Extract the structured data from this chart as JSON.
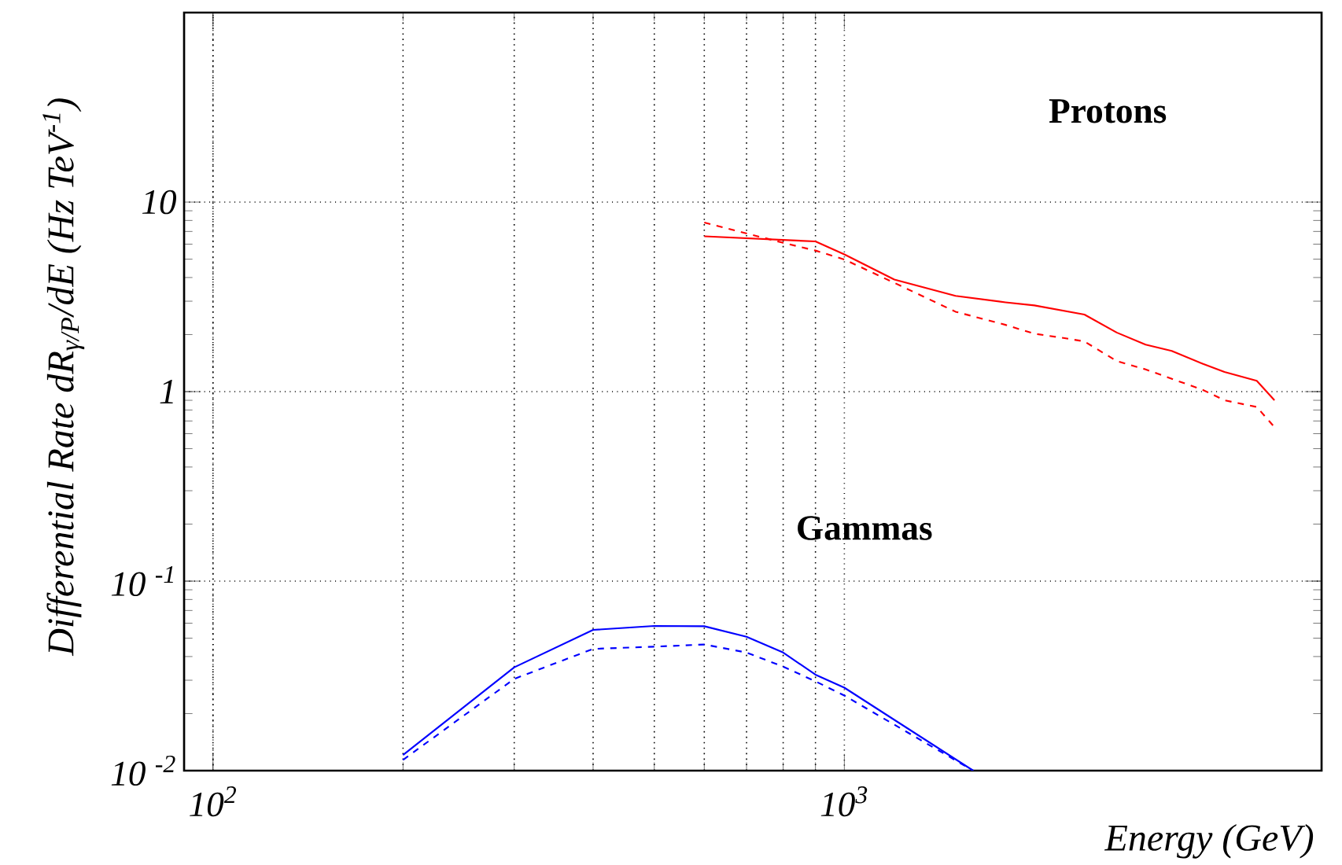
{
  "chart_data": {
    "type": "line",
    "xlabel": "Energy (GeV)",
    "ylabel": "Differential Rate dR$_{γ/P}$/dE (Hz TeV$^{-1}$)",
    "log": "xy",
    "grid": true,
    "xlim": [
      90,
      5700
    ],
    "ylim": [
      0.01,
      100
    ],
    "xticks": [
      {
        "value": 100,
        "label": "10$^{2}$"
      },
      {
        "value": 1000,
        "label": "10$^{3}$"
      }
    ],
    "yticks": [
      {
        "value": 0.01,
        "label": "10 $^{-2}$"
      },
      {
        "value": 0.1,
        "label": "10 $^{-1}$"
      },
      1,
      10
    ],
    "annotations": [
      "Protons",
      "Gammas"
    ],
    "series": [
      {
        "color": "#ff0000",
        "line_style": "solid",
        "x": [
          600,
          900,
          1000,
          1200,
          1500,
          1800,
          2000,
          2400,
          2700,
          3000,
          3300,
          3700,
          4000,
          4500,
          4800
        ],
        "values": [
          6.6,
          6.2,
          5.3,
          3.9,
          3.2,
          2.96,
          2.85,
          2.55,
          2.05,
          1.77,
          1.64,
          1.4,
          1.27,
          1.14,
          0.9
        ]
      },
      {
        "color": "#ff0000",
        "line_style": "dashed",
        "x": [
          600,
          800,
          900,
          1000,
          1200,
          1500,
          1800,
          2000,
          2200,
          2400,
          2700,
          3000,
          3700,
          4000,
          4500,
          4800
        ],
        "values": [
          7.8,
          6.1,
          5.55,
          4.98,
          3.75,
          2.64,
          2.25,
          2.02,
          1.93,
          1.84,
          1.45,
          1.31,
          1.02,
          0.9,
          0.83,
          0.65
        ]
      },
      {
        "color": "#0000ff",
        "line_style": "solid",
        "x": [
          200,
          300,
          400,
          500,
          600,
          700,
          800,
          900,
          1000,
          1600
        ],
        "values": [
          0.0121,
          0.0351,
          0.0553,
          0.058,
          0.0578,
          0.0509,
          0.042,
          0.0321,
          0.0274,
          0.01
        ]
      },
      {
        "color": "#0000ff",
        "line_style": "dashed",
        "x": [
          200,
          300,
          400,
          500,
          600,
          700,
          800,
          900,
          1000,
          1600
        ],
        "values": [
          0.0114,
          0.0305,
          0.0439,
          0.0451,
          0.0463,
          0.042,
          0.0354,
          0.0296,
          0.0249,
          0.01
        ]
      }
    ]
  }
}
